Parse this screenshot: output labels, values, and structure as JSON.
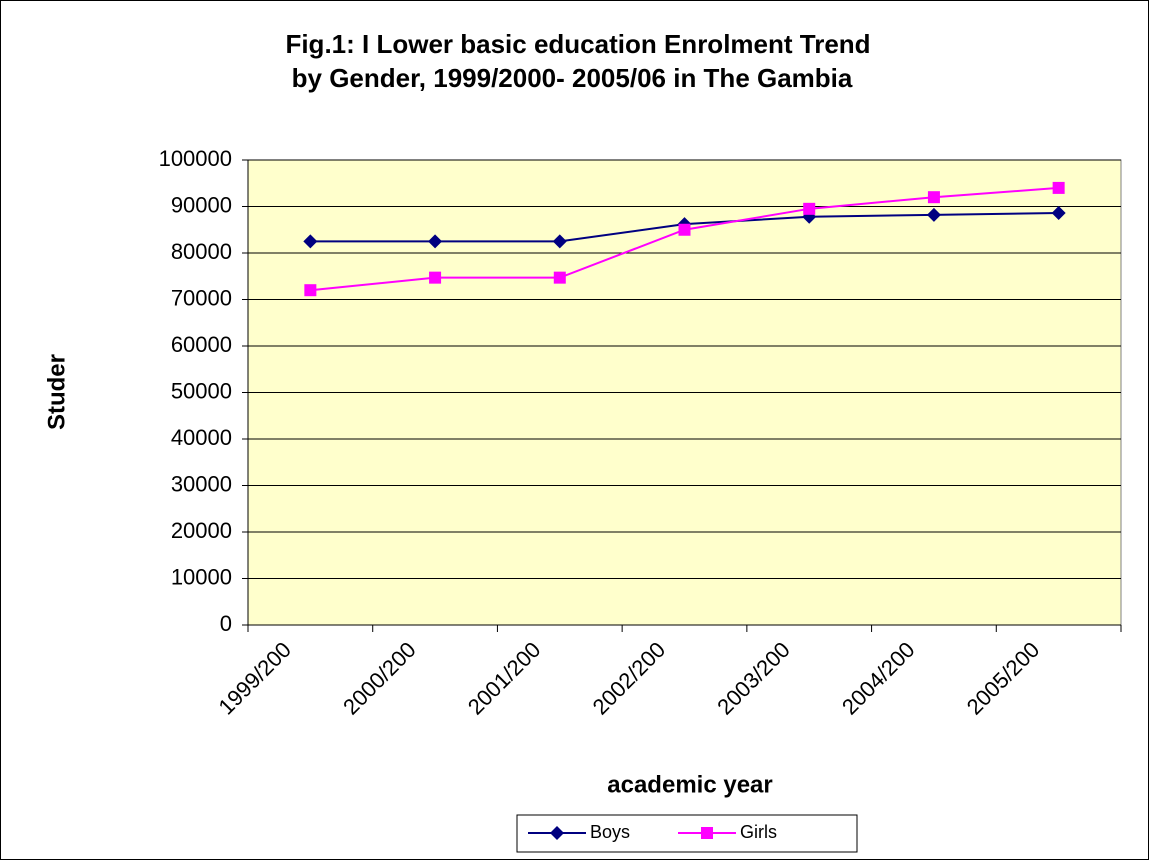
{
  "chart_data": {
    "type": "line",
    "title": [
      "Fig.1: I Lower basic education Enrolment Trend",
      "by Gender, 1999/2000- 2005/06 in The Gambia"
    ],
    "x_label": "academic year",
    "y_label": "Studer",
    "categories": [
      "1999/200",
      "2000/200",
      "2001/200",
      "2002/200",
      "2003/200",
      "2004/200",
      "2005/200"
    ],
    "series": [
      {
        "name": "Boys",
        "color": "#000080",
        "marker": "diamond",
        "values": [
          82500,
          82500,
          82500,
          86200,
          87800,
          88200,
          88600
        ]
      },
      {
        "name": "Girls",
        "color": "#ff00ff",
        "marker": "square",
        "values": [
          72000,
          74700,
          74700,
          85000,
          89500,
          92000,
          94000
        ]
      }
    ],
    "ylim": [
      0,
      100000
    ],
    "yticks": [
      0,
      10000,
      20000,
      30000,
      40000,
      50000,
      60000,
      70000,
      80000,
      90000,
      100000
    ],
    "grid": true,
    "plot_background": "#ffffcc",
    "legend": "bottom"
  }
}
